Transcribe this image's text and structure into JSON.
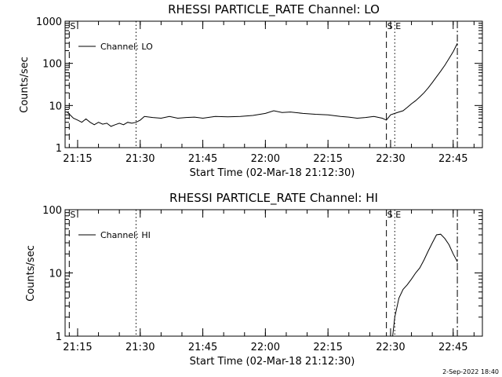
{
  "footer": {
    "timestamp": "2-Sep-2022 18:40"
  },
  "chart_data": [
    {
      "type": "line",
      "title": "RHESSI PARTICLE_RATE Channel: LO",
      "xlabel": "Start Time (02-Mar-18 21:12:30)",
      "ylabel": "Counts/sec",
      "yscale": "log",
      "ylim": [
        1,
        1000
      ],
      "y_ticks": [
        1,
        10,
        100,
        1000
      ],
      "y_tick_labels": [
        "1",
        "10",
        "100",
        "1000"
      ],
      "xlim_minutes": [
        21.2,
        22.8667
      ],
      "x_ticks": [
        "21:15",
        "21:30",
        "21:45",
        "22:00",
        "22:15",
        "22:30",
        "22:45"
      ],
      "legend": "top-left",
      "series": [
        {
          "name": "Channel: LO",
          "x": [
            "21:12:30",
            "21:14",
            "21:15",
            "21:16",
            "21:17",
            "21:18",
            "21:19",
            "21:20",
            "21:21",
            "21:22",
            "21:23",
            "21:24",
            "21:25",
            "21:26",
            "21:27",
            "21:28",
            "21:29",
            "21:30",
            "21:31",
            "21:33",
            "21:35",
            "21:37",
            "21:39",
            "21:41",
            "21:43",
            "21:45",
            "21:48",
            "21:51",
            "21:54",
            "21:57",
            "22:00",
            "22:02",
            "22:04",
            "22:06",
            "22:09",
            "22:12",
            "22:15",
            "22:18",
            "22:20",
            "22:22",
            "22:24",
            "22:26",
            "22:28",
            "22:29",
            "22:30",
            "22:31",
            "22:32",
            "22:33",
            "22:34",
            "22:35",
            "22:36",
            "22:37",
            "22:38",
            "22:39",
            "22:40",
            "22:41",
            "22:42",
            "22:43",
            "22:44",
            "22:45",
            "22:46"
          ],
          "values": [
            7,
            5,
            4.5,
            4,
            4.8,
            4,
            3.5,
            4,
            3.6,
            3.8,
            3.2,
            3.5,
            3.8,
            3.5,
            4,
            3.8,
            4,
            4.5,
            5.5,
            5.2,
            5,
            5.5,
            5,
            5.2,
            5.3,
            5,
            5.5,
            5.4,
            5.5,
            5.8,
            6.5,
            7.5,
            6.8,
            7,
            6.5,
            6.2,
            6,
            5.5,
            5.3,
            5,
            5.2,
            5.5,
            5,
            4.5,
            6,
            6.5,
            7,
            7.5,
            9,
            11,
            13,
            16,
            20,
            26,
            35,
            48,
            65,
            90,
            130,
            190,
            300
          ]
        }
      ],
      "markers": [
        {
          "label": "S",
          "time": "21:13",
          "style": "dashed"
        },
        {
          "label": "",
          "time": "21:29",
          "style": "dotted"
        },
        {
          "label": "S",
          "time": "22:29",
          "style": "dashed"
        },
        {
          "label": "E",
          "time": "22:31",
          "style": "dotted"
        },
        {
          "label": "",
          "time": "22:46",
          "style": "dashdot"
        }
      ]
    },
    {
      "type": "line",
      "title": "RHESSI PARTICLE_RATE Channel: HI",
      "xlabel": "Start Time (02-Mar-18 21:12:30)",
      "ylabel": "Counts/sec",
      "yscale": "log",
      "ylim": [
        1,
        100
      ],
      "y_ticks": [
        1,
        10,
        100
      ],
      "y_tick_labels": [
        "1",
        "10",
        "100"
      ],
      "xlim_minutes": [
        21.2,
        22.8667
      ],
      "x_ticks": [
        "21:15",
        "21:30",
        "21:45",
        "22:00",
        "22:15",
        "22:30",
        "22:45"
      ],
      "legend": "top-left",
      "series": [
        {
          "name": "Channel: HI",
          "x": [
            "22:30:30",
            "22:31",
            "22:32",
            "22:33",
            "22:34",
            "22:35",
            "22:36",
            "22:37",
            "22:38",
            "22:39",
            "22:40",
            "22:41",
            "22:42",
            "22:43",
            "22:44",
            "22:45",
            "22:46"
          ],
          "values": [
            1,
            2,
            4,
            5.5,
            6.5,
            8,
            10,
            12,
            16,
            22,
            30,
            40,
            41,
            35,
            28,
            20,
            15
          ]
        }
      ],
      "markers": [
        {
          "label": "S",
          "time": "21:13",
          "style": "dashed"
        },
        {
          "label": "",
          "time": "21:29",
          "style": "dotted"
        },
        {
          "label": "S",
          "time": "22:29",
          "style": "dashed"
        },
        {
          "label": "E",
          "time": "22:31",
          "style": "dotted"
        },
        {
          "label": "",
          "time": "22:46",
          "style": "dashdot"
        }
      ]
    }
  ]
}
